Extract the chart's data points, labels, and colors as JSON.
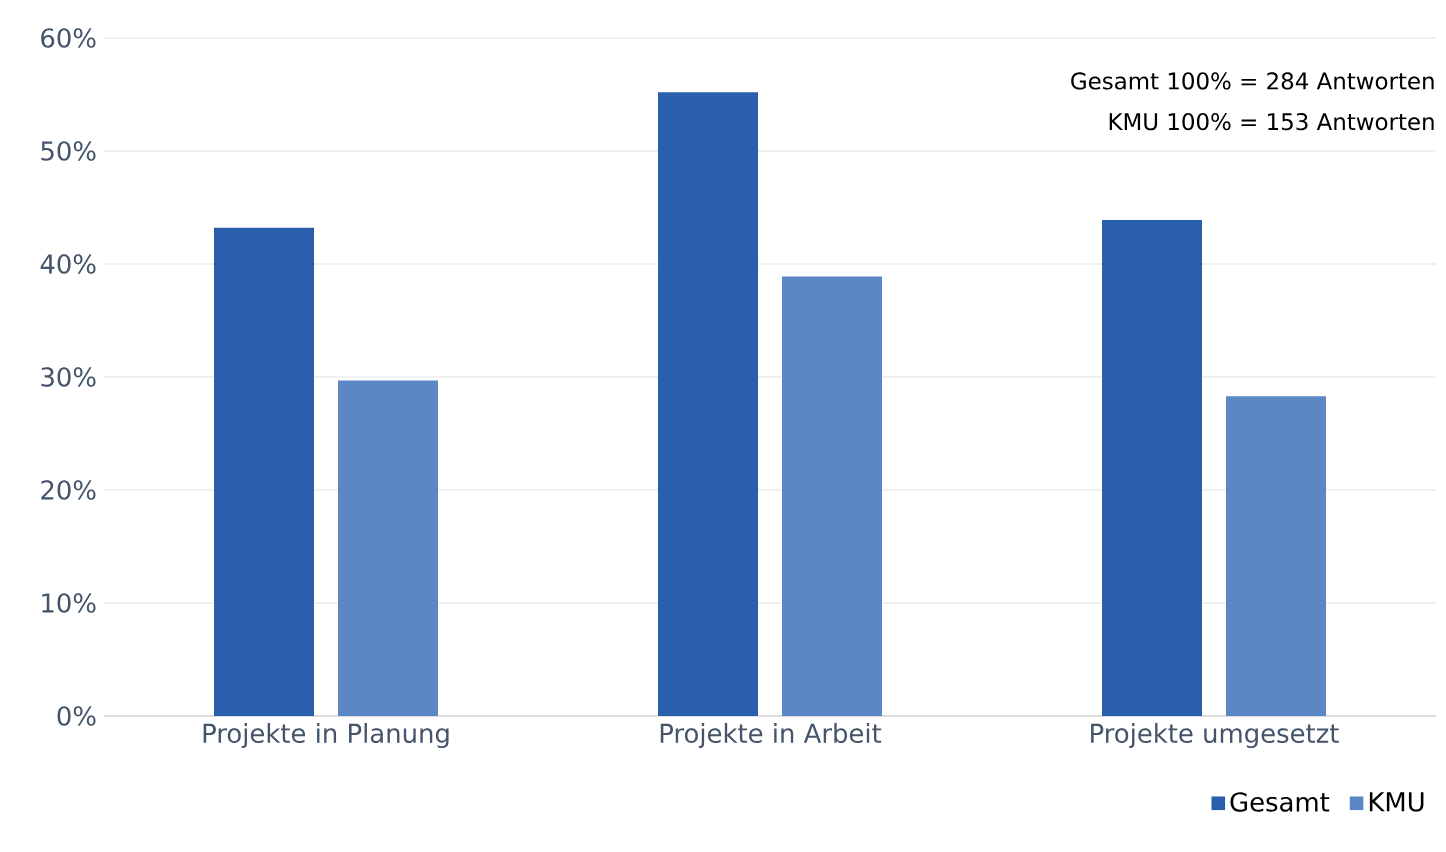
{
  "chart_data": {
    "type": "bar",
    "categories": [
      "Projekte in Planung",
      "Projekte in Arbeit",
      "Projekte umgesetzt"
    ],
    "series": [
      {
        "name": "Gesamt",
        "color": "#2a5fae",
        "values": [
          43.2,
          55.2,
          43.9
        ]
      },
      {
        "name": "KMU",
        "color": "#5b87c5",
        "values": [
          29.7,
          38.9,
          28.3
        ]
      }
    ],
    "ylim": [
      0,
      60
    ],
    "yticks": [
      {
        "value": 0,
        "label": "0%"
      },
      {
        "value": 10,
        "label": "10%"
      },
      {
        "value": 20,
        "label": "20%"
      },
      {
        "value": 30,
        "label": "30%"
      },
      {
        "value": 40,
        "label": "40%"
      },
      {
        "value": 50,
        "label": "50%"
      },
      {
        "value": 60,
        "label": "60%"
      }
    ],
    "grid": "y",
    "legend": "bottom right",
    "annotations": [
      "Gesamt 100% = 284 Antworten",
      "KMU 100% = 153 Antworten"
    ]
  }
}
